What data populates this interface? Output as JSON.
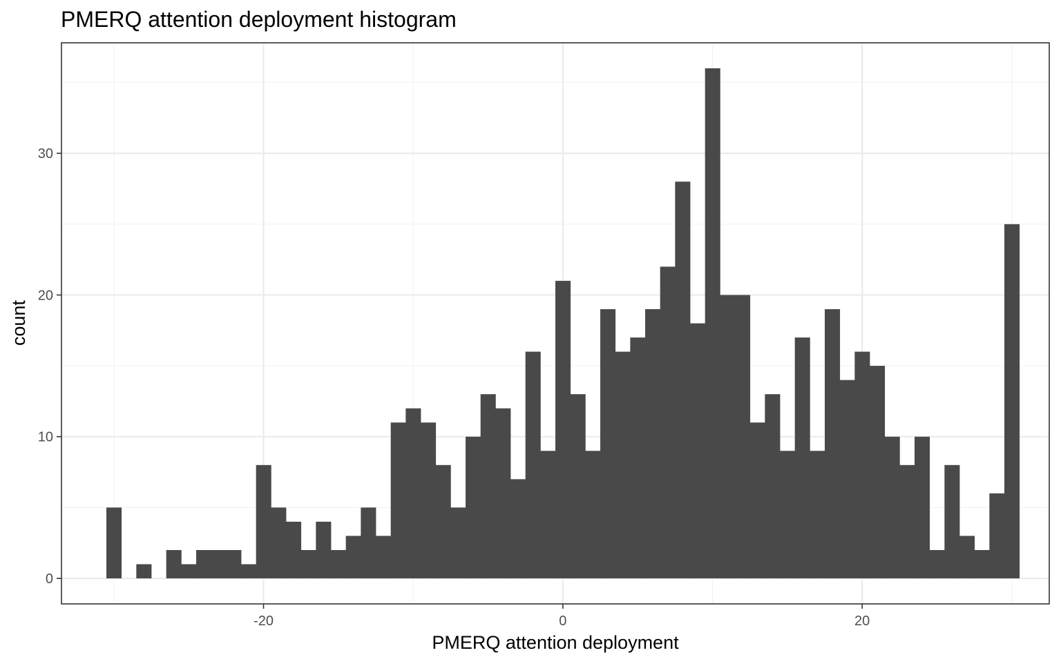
{
  "chart_data": {
    "type": "bar",
    "title": "PMERQ attention deployment histogram",
    "xlabel": "PMERQ attention deployment",
    "ylabel": "count",
    "xlim": [
      -33.5,
      32.5
    ],
    "ylim": [
      -1.8,
      37.8
    ],
    "x_ticks": [
      -20,
      0,
      20
    ],
    "x_tick_labels": [
      "-20",
      "0",
      "20"
    ],
    "y_ticks": [
      0,
      10,
      20,
      30
    ],
    "y_tick_labels": [
      "0",
      "10",
      "20",
      "30"
    ],
    "grid": true,
    "bin_width": 1,
    "bin_centers": [
      -30,
      -29,
      -28,
      -27,
      -26,
      -25,
      -24,
      -23,
      -22,
      -21,
      -20,
      -19,
      -18,
      -17,
      -16,
      -15,
      -14,
      -13,
      -12,
      -11,
      -10,
      -9,
      -8,
      -7,
      -6,
      -5,
      -4,
      -3,
      -2,
      -1,
      0,
      1,
      2,
      3,
      4,
      5,
      6,
      7,
      8,
      9,
      10,
      11,
      12,
      13,
      14,
      15,
      16,
      17,
      18,
      19,
      20,
      21,
      22,
      23,
      24,
      25,
      26,
      27,
      28,
      29,
      30
    ],
    "values": [
      5,
      0,
      1,
      0,
      2,
      1,
      2,
      2,
      2,
      1,
      8,
      5,
      4,
      2,
      4,
      2,
      3,
      5,
      3,
      11,
      12,
      11,
      8,
      5,
      10,
      13,
      12,
      7,
      16,
      9,
      21,
      13,
      9,
      19,
      16,
      17,
      19,
      22,
      28,
      18,
      36,
      20,
      20,
      11,
      13,
      9,
      17,
      9,
      19,
      14,
      16,
      15,
      10,
      8,
      10,
      2,
      8,
      3,
      2,
      6,
      25
    ],
    "colors": {
      "bar": "#494949",
      "grid_major": "#ebebeb",
      "grid_minor": "#f3f3f3",
      "panel_border": "#333333",
      "tick": "#333333",
      "tick_label": "#4d4d4d",
      "text": "#000000",
      "background": "#ffffff"
    }
  }
}
